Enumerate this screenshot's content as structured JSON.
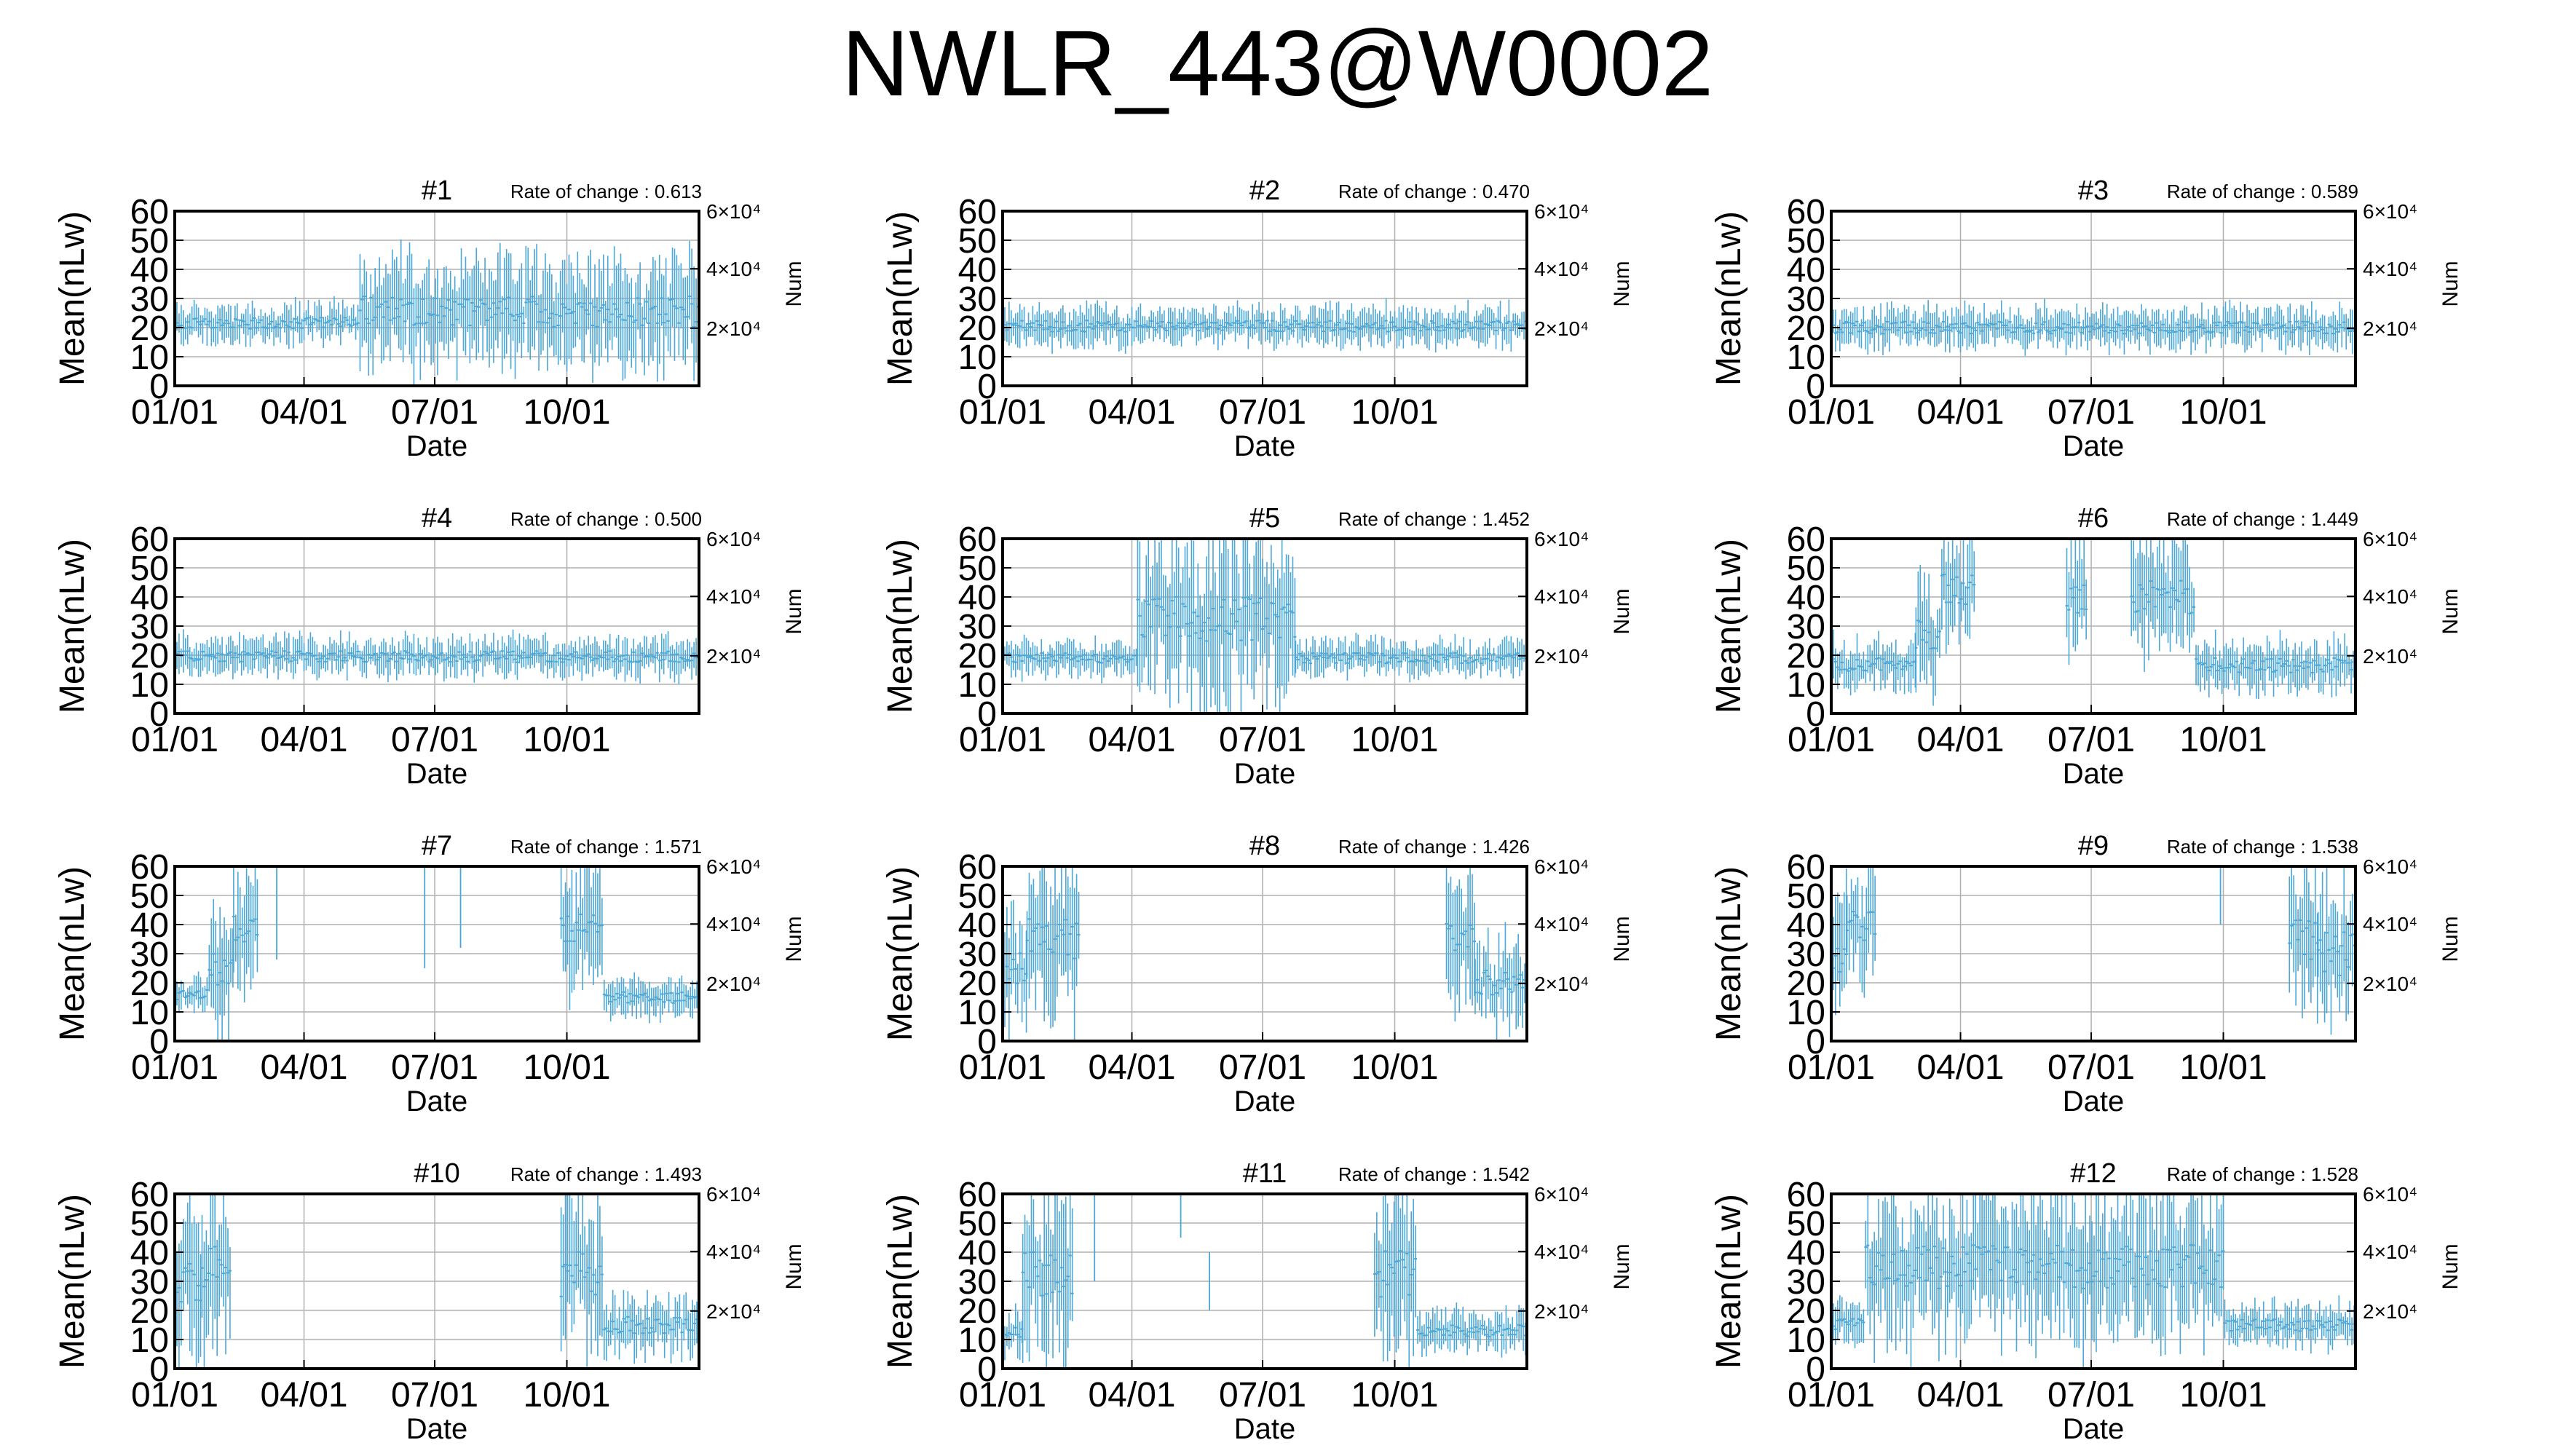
{
  "page": {
    "title": "NWLR_443@W0002"
  },
  "style": {
    "series_color": "#4aa7d6",
    "grid_color": "#b0b0b0",
    "axis_color": "#000000"
  },
  "chart_data": [
    {
      "type": "line",
      "title": "#1",
      "annotation": "Rate of change : 0.613",
      "ylabel": "Mean(nLw)",
      "xlabel": "Date",
      "y2label": "Num",
      "ylim": [
        0,
        60
      ],
      "yticks": [
        0,
        10,
        20,
        30,
        40,
        50,
        60
      ],
      "xlim": [
        1,
        366
      ],
      "xticks": [
        {
          "day": 1,
          "label": "01/01"
        },
        {
          "day": 91,
          "label": "04/01"
        },
        {
          "day": 182,
          "label": "07/01"
        },
        {
          "day": 274,
          "label": "10/01"
        }
      ],
      "y2ticks": [
        "2×10⁴",
        "4×10⁴",
        "6×10⁴"
      ],
      "segments": [
        {
          "start": 1,
          "end": 130,
          "low": 15,
          "high": 28
        },
        {
          "start": 130,
          "end": 366,
          "low": 8,
          "high": 43
        }
      ],
      "spikes": []
    },
    {
      "type": "line",
      "title": "#2",
      "annotation": "Rate of change : 0.470",
      "ylabel": "Mean(nLw)",
      "xlabel": "Date",
      "y2label": "Num",
      "ylim": [
        0,
        60
      ],
      "yticks": [
        0,
        10,
        20,
        30,
        40,
        50,
        60
      ],
      "xlim": [
        1,
        366
      ],
      "xticks": [
        {
          "day": 1,
          "label": "01/01"
        },
        {
          "day": 91,
          "label": "04/01"
        },
        {
          "day": 182,
          "label": "07/01"
        },
        {
          "day": 274,
          "label": "10/01"
        }
      ],
      "y2ticks": [
        "2×10⁴",
        "4×10⁴",
        "6×10⁴"
      ],
      "segments": [
        {
          "start": 1,
          "end": 366,
          "low": 14,
          "high": 27
        }
      ],
      "spikes": []
    },
    {
      "type": "line",
      "title": "#3",
      "annotation": "Rate of change : 0.589",
      "ylabel": "Mean(nLw)",
      "xlabel": "Date",
      "y2label": "Num",
      "ylim": [
        0,
        60
      ],
      "yticks": [
        0,
        10,
        20,
        30,
        40,
        50,
        60
      ],
      "xlim": [
        1,
        366
      ],
      "xticks": [
        {
          "day": 1,
          "label": "01/01"
        },
        {
          "day": 91,
          "label": "04/01"
        },
        {
          "day": 182,
          "label": "07/01"
        },
        {
          "day": 274,
          "label": "10/01"
        }
      ],
      "y2ticks": [
        "2×10⁴",
        "4×10⁴",
        "6×10⁴"
      ],
      "segments": [
        {
          "start": 1,
          "end": 366,
          "low": 13,
          "high": 27
        }
      ],
      "spikes": []
    },
    {
      "type": "line",
      "title": "#4",
      "annotation": "Rate of change : 0.500",
      "ylabel": "Mean(nLw)",
      "xlabel": "Date",
      "y2label": "Num",
      "ylim": [
        0,
        60
      ],
      "yticks": [
        0,
        10,
        20,
        30,
        40,
        50,
        60
      ],
      "xlim": [
        1,
        366
      ],
      "xticks": [
        {
          "day": 1,
          "label": "01/01"
        },
        {
          "day": 91,
          "label": "04/01"
        },
        {
          "day": 182,
          "label": "07/01"
        },
        {
          "day": 274,
          "label": "10/01"
        }
      ],
      "y2ticks": [
        "2×10⁴",
        "4×10⁴",
        "6×10⁴"
      ],
      "segments": [
        {
          "start": 1,
          "end": 366,
          "low": 13,
          "high": 26
        }
      ],
      "spikes": []
    },
    {
      "type": "line",
      "title": "#5",
      "annotation": "Rate of change : 1.452",
      "ylabel": "Mean(nLw)",
      "xlabel": "Date",
      "y2label": "Num",
      "ylim": [
        0,
        60
      ],
      "yticks": [
        0,
        10,
        20,
        30,
        40,
        50,
        60
      ],
      "xlim": [
        1,
        366
      ],
      "xticks": [
        {
          "day": 1,
          "label": "01/01"
        },
        {
          "day": 91,
          "label": "04/01"
        },
        {
          "day": 182,
          "label": "07/01"
        },
        {
          "day": 274,
          "label": "10/01"
        }
      ],
      "y2ticks": [
        "2×10⁴",
        "4×10⁴",
        "6×10⁴"
      ],
      "segments": [
        {
          "start": 1,
          "end": 95,
          "low": 13,
          "high": 25
        },
        {
          "start": 95,
          "end": 205,
          "low": 5,
          "high": 60
        },
        {
          "start": 205,
          "end": 366,
          "low": 13,
          "high": 25
        }
      ],
      "spikes": []
    },
    {
      "type": "line",
      "title": "#6",
      "annotation": "Rate of change : 1.449",
      "ylabel": "Mean(nLw)",
      "xlabel": "Date",
      "y2label": "Num",
      "ylim": [
        0,
        60
      ],
      "yticks": [
        0,
        10,
        20,
        30,
        40,
        50,
        60
      ],
      "xlim": [
        1,
        366
      ],
      "xticks": [
        {
          "day": 1,
          "label": "01/01"
        },
        {
          "day": 91,
          "label": "04/01"
        },
        {
          "day": 182,
          "label": "07/01"
        },
        {
          "day": 274,
          "label": "10/01"
        }
      ],
      "y2ticks": [
        "2×10⁴",
        "4×10⁴",
        "6×10⁴"
      ],
      "segments": [
        {
          "start": 1,
          "end": 60,
          "low": 8,
          "high": 25
        },
        {
          "start": 60,
          "end": 78,
          "low": 10,
          "high": 45
        },
        {
          "start": 78,
          "end": 102,
          "low": 25,
          "high": 60
        },
        {
          "start": 165,
          "end": 180,
          "low": 20,
          "high": 60
        },
        {
          "start": 210,
          "end": 255,
          "low": 20,
          "high": 60
        },
        {
          "start": 255,
          "end": 366,
          "low": 8,
          "high": 25
        }
      ],
      "spikes": []
    },
    {
      "type": "line",
      "title": "#7",
      "annotation": "Rate of change : 1.571",
      "ylabel": "Mean(nLw)",
      "xlabel": "Date",
      "y2label": "Num",
      "ylim": [
        0,
        60
      ],
      "yticks": [
        0,
        10,
        20,
        30,
        40,
        50,
        60
      ],
      "xlim": [
        1,
        366
      ],
      "xticks": [
        {
          "day": 1,
          "label": "01/01"
        },
        {
          "day": 91,
          "label": "04/01"
        },
        {
          "day": 182,
          "label": "07/01"
        },
        {
          "day": 274,
          "label": "10/01"
        }
      ],
      "y2ticks": [
        "2×10⁴",
        "4×10⁴",
        "6×10⁴"
      ],
      "segments": [
        {
          "start": 1,
          "end": 25,
          "low": 10,
          "high": 22
        },
        {
          "start": 25,
          "end": 42,
          "low": 5,
          "high": 45
        },
        {
          "start": 42,
          "end": 60,
          "low": 20,
          "high": 60
        },
        {
          "start": 270,
          "end": 300,
          "low": 20,
          "high": 60
        },
        {
          "start": 300,
          "end": 366,
          "low": 8,
          "high": 22
        }
      ],
      "spikes": [
        {
          "day": 72,
          "low": 28,
          "high": 60
        },
        {
          "day": 175,
          "low": 25,
          "high": 60
        },
        {
          "day": 200,
          "low": 32,
          "high": 60
        }
      ]
    },
    {
      "type": "line",
      "title": "#8",
      "annotation": "Rate of change : 1.426",
      "ylabel": "Mean(nLw)",
      "xlabel": "Date",
      "y2label": "Num",
      "ylim": [
        0,
        60
      ],
      "yticks": [
        0,
        10,
        20,
        30,
        40,
        50,
        60
      ],
      "xlim": [
        1,
        366
      ],
      "xticks": [
        {
          "day": 1,
          "label": "01/01"
        },
        {
          "day": 91,
          "label": "04/01"
        },
        {
          "day": 182,
          "label": "07/01"
        },
        {
          "day": 274,
          "label": "10/01"
        }
      ],
      "y2ticks": [
        "2×10⁴",
        "4×10⁴",
        "6×10⁴"
      ],
      "segments": [
        {
          "start": 1,
          "end": 18,
          "low": 5,
          "high": 45
        },
        {
          "start": 18,
          "end": 55,
          "low": 10,
          "high": 60
        },
        {
          "start": 310,
          "end": 330,
          "low": 15,
          "high": 60
        },
        {
          "start": 330,
          "end": 366,
          "low": 5,
          "high": 35
        }
      ],
      "spikes": []
    },
    {
      "type": "line",
      "title": "#9",
      "annotation": "Rate of change : 1.538",
      "ylabel": "Mean(nLw)",
      "xlabel": "Date",
      "y2label": "Num",
      "ylim": [
        0,
        60
      ],
      "yticks": [
        0,
        10,
        20,
        30,
        40,
        50,
        60
      ],
      "xlim": [
        1,
        366
      ],
      "xticks": [
        {
          "day": 1,
          "label": "01/01"
        },
        {
          "day": 91,
          "label": "04/01"
        },
        {
          "day": 182,
          "label": "07/01"
        },
        {
          "day": 274,
          "label": "10/01"
        }
      ],
      "y2ticks": [
        "2×10⁴",
        "4×10⁴",
        "6×10⁴"
      ],
      "segments": [
        {
          "start": 1,
          "end": 12,
          "low": 5,
          "high": 55
        },
        {
          "start": 12,
          "end": 32,
          "low": 20,
          "high": 60
        },
        {
          "start": 320,
          "end": 340,
          "low": 10,
          "high": 60
        },
        {
          "start": 340,
          "end": 366,
          "low": 5,
          "high": 55
        }
      ],
      "spikes": [
        {
          "day": 272,
          "low": 40,
          "high": 60
        }
      ]
    },
    {
      "type": "line",
      "title": "#10",
      "annotation": "Rate of change : 1.493",
      "ylabel": "Mean(nLw)",
      "xlabel": "Date",
      "y2label": "Num",
      "ylim": [
        0,
        60
      ],
      "yticks": [
        0,
        10,
        20,
        30,
        40,
        50,
        60
      ],
      "xlim": [
        1,
        366
      ],
      "xticks": [
        {
          "day": 1,
          "label": "01/01"
        },
        {
          "day": 91,
          "label": "04/01"
        },
        {
          "day": 182,
          "label": "07/01"
        },
        {
          "day": 274,
          "label": "10/01"
        }
      ],
      "y2ticks": [
        "2×10⁴",
        "4×10⁴",
        "6×10⁴"
      ],
      "segments": [
        {
          "start": 1,
          "end": 20,
          "low": 5,
          "high": 55
        },
        {
          "start": 20,
          "end": 40,
          "low": 10,
          "high": 60
        },
        {
          "start": 270,
          "end": 300,
          "low": 5,
          "high": 60
        },
        {
          "start": 300,
          "end": 366,
          "low": 5,
          "high": 25
        }
      ],
      "spikes": []
    },
    {
      "type": "line",
      "title": "#11",
      "annotation": "Rate of change : 1.542",
      "ylabel": "Mean(nLw)",
      "xlabel": "Date",
      "y2label": "Num",
      "ylim": [
        0,
        60
      ],
      "yticks": [
        0,
        10,
        20,
        30,
        40,
        50,
        60
      ],
      "xlim": [
        1,
        366
      ],
      "xticks": [
        {
          "day": 1,
          "label": "01/01"
        },
        {
          "day": 91,
          "label": "04/01"
        },
        {
          "day": 182,
          "label": "07/01"
        },
        {
          "day": 274,
          "label": "10/01"
        }
      ],
      "y2ticks": [
        "2×10⁴",
        "4×10⁴",
        "6×10⁴"
      ],
      "segments": [
        {
          "start": 1,
          "end": 15,
          "low": 5,
          "high": 20
        },
        {
          "start": 15,
          "end": 50,
          "low": 5,
          "high": 60
        },
        {
          "start": 260,
          "end": 290,
          "low": 5,
          "high": 60
        },
        {
          "start": 290,
          "end": 366,
          "low": 6,
          "high": 20
        }
      ],
      "spikes": [
        {
          "day": 65,
          "low": 30,
          "high": 60
        },
        {
          "day": 125,
          "low": 45,
          "high": 60
        },
        {
          "day": 145,
          "low": 20,
          "high": 40
        }
      ]
    },
    {
      "type": "line",
      "title": "#12",
      "annotation": "Rate of change : 1.528",
      "ylabel": "Mean(nLw)",
      "xlabel": "Date",
      "y2label": "Num",
      "ylim": [
        0,
        60
      ],
      "yticks": [
        0,
        10,
        20,
        30,
        40,
        50,
        60
      ],
      "xlim": [
        1,
        366
      ],
      "xticks": [
        {
          "day": 1,
          "label": "01/01"
        },
        {
          "day": 91,
          "label": "04/01"
        },
        {
          "day": 182,
          "label": "07/01"
        },
        {
          "day": 274,
          "label": "10/01"
        }
      ],
      "y2ticks": [
        "2×10⁴",
        "4×10⁴",
        "6×10⁴"
      ],
      "segments": [
        {
          "start": 1,
          "end": 25,
          "low": 8,
          "high": 22
        },
        {
          "start": 25,
          "end": 275,
          "low": 10,
          "high": 60
        },
        {
          "start": 275,
          "end": 366,
          "low": 8,
          "high": 22
        }
      ],
      "spikes": []
    }
  ]
}
